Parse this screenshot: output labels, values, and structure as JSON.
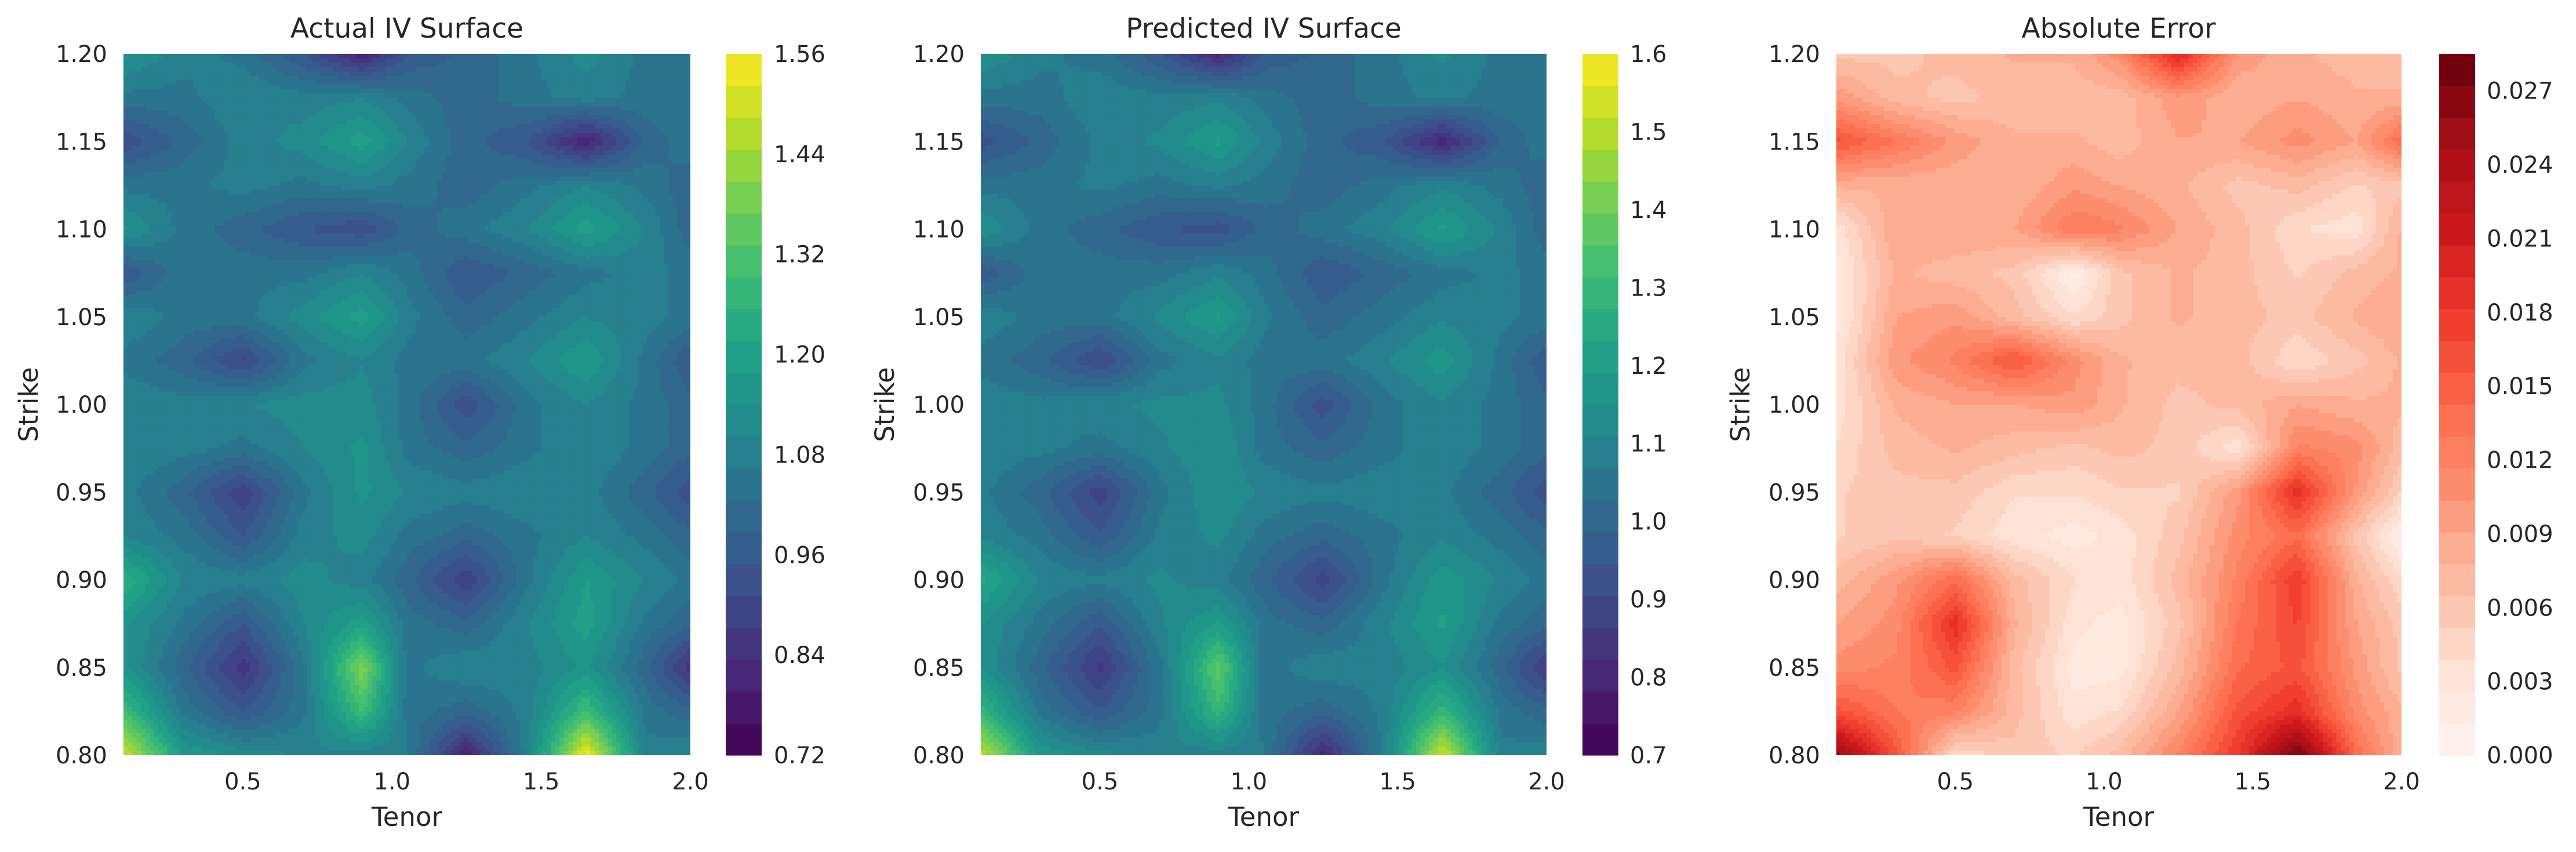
{
  "chart_data": [
    {
      "type": "heatmap",
      "title": "Actual IV Surface",
      "xlabel": "Tenor",
      "ylabel": "Strike",
      "xlim": [
        0.1,
        2.0
      ],
      "ylim": [
        0.8,
        1.2
      ],
      "xticks": [
        "0.5",
        "1.0",
        "1.5",
        "2.0"
      ],
      "yticks": [
        "0.80",
        "0.85",
        "0.90",
        "0.95",
        "1.00",
        "1.05",
        "1.10",
        "1.15",
        "1.20"
      ],
      "colormap": "viridis",
      "colorbar": {
        "min": 0.72,
        "max": 1.56,
        "ticks": [
          "0.72",
          "0.84",
          "0.96",
          "1.08",
          "1.20",
          "1.32",
          "1.44",
          "1.56"
        ]
      },
      "x": [
        0.1,
        0.3,
        0.5,
        0.7,
        0.9,
        1.05,
        1.25,
        1.45,
        1.65,
        1.85,
        2.0
      ],
      "y": [
        0.8,
        0.825,
        0.85,
        0.875,
        0.9,
        0.925,
        0.95,
        0.975,
        1.0,
        1.025,
        1.05,
        1.075,
        1.1,
        1.125,
        1.15,
        1.175,
        1.2
      ],
      "z": [
        [
          1.5,
          1.18,
          1.12,
          1.1,
          1.08,
          1.07,
          0.8,
          1.08,
          1.55,
          1.08,
          1.1
        ],
        [
          1.3,
          1.05,
          0.95,
          1.05,
          1.3,
          1.05,
          1.0,
          1.08,
          1.3,
          1.05,
          1.0
        ],
        [
          1.15,
          1.0,
          0.85,
          1.05,
          1.4,
          1.05,
          1.1,
          1.08,
          1.15,
          1.0,
          0.85
        ],
        [
          1.15,
          1.05,
          0.95,
          1.1,
          1.2,
          1.05,
          1.0,
          1.1,
          1.2,
          1.05,
          1.0
        ],
        [
          1.25,
          1.1,
          1.08,
          1.12,
          1.08,
          1.0,
          0.88,
          1.05,
          1.18,
          1.1,
          1.05
        ],
        [
          1.1,
          1.05,
          0.95,
          1.08,
          1.12,
          1.05,
          1.0,
          1.05,
          1.1,
          1.05,
          1.0
        ],
        [
          1.08,
          1.0,
          0.88,
          1.05,
          1.15,
          1.1,
          1.08,
          1.1,
          1.08,
          1.0,
          0.92
        ],
        [
          1.1,
          1.08,
          1.05,
          1.1,
          1.15,
          1.05,
          1.0,
          1.05,
          1.1,
          1.05,
          1.0
        ],
        [
          1.1,
          1.08,
          1.1,
          1.12,
          1.12,
          1.05,
          0.92,
          1.05,
          1.1,
          1.05,
          1.0
        ],
        [
          1.05,
          1.0,
          0.9,
          1.05,
          1.1,
          1.05,
          1.05,
          1.1,
          1.18,
          1.05,
          0.95
        ],
        [
          1.1,
          1.05,
          1.05,
          1.12,
          1.2,
          1.08,
          1.0,
          1.05,
          1.1,
          1.08,
          1.05
        ],
        [
          0.95,
          1.05,
          1.05,
          1.05,
          1.1,
          1.05,
          0.95,
          1.0,
          1.05,
          1.08,
          1.05
        ],
        [
          1.15,
          1.05,
          1.0,
          0.95,
          0.92,
          1.0,
          1.05,
          1.1,
          1.2,
          1.1,
          1.0
        ],
        [
          1.05,
          1.05,
          1.08,
          1.05,
          1.08,
          1.05,
          1.0,
          1.05,
          1.1,
          1.05,
          1.0
        ],
        [
          0.92,
          1.0,
          1.08,
          1.12,
          1.2,
          1.1,
          1.0,
          0.95,
          0.8,
          1.0,
          1.05
        ],
        [
          1.05,
          1.05,
          1.1,
          1.08,
          1.1,
          1.05,
          1.0,
          1.05,
          1.08,
          1.05,
          1.05
        ],
        [
          1.15,
          1.08,
          1.05,
          0.95,
          0.8,
          0.95,
          1.0,
          1.05,
          1.12,
          1.05,
          1.05
        ]
      ]
    },
    {
      "type": "heatmap",
      "title": "Predicted IV Surface",
      "xlabel": "Tenor",
      "ylabel": "Strike",
      "xlim": [
        0.1,
        2.0
      ],
      "ylim": [
        0.8,
        1.2
      ],
      "xticks": [
        "0.5",
        "1.0",
        "1.5",
        "2.0"
      ],
      "yticks": [
        "0.80",
        "0.85",
        "0.90",
        "0.95",
        "1.00",
        "1.05",
        "1.10",
        "1.15",
        "1.20"
      ],
      "colormap": "viridis",
      "colorbar": {
        "min": 0.7,
        "max": 1.6,
        "ticks": [
          "0.7",
          "0.8",
          "0.9",
          "1.0",
          "1.1",
          "1.2",
          "1.3",
          "1.4",
          "1.5",
          "1.6"
        ]
      },
      "x": [
        0.1,
        0.3,
        0.5,
        0.7,
        0.9,
        1.05,
        1.25,
        1.45,
        1.65,
        1.85,
        2.0
      ],
      "y": [
        0.8,
        0.825,
        0.85,
        0.875,
        0.9,
        0.925,
        0.95,
        0.975,
        1.0,
        1.025,
        1.05,
        1.075,
        1.1,
        1.125,
        1.15,
        1.175,
        1.2
      ],
      "z": [
        [
          1.52,
          1.18,
          1.12,
          1.1,
          1.08,
          1.07,
          0.8,
          1.08,
          1.54,
          1.08,
          1.1
        ],
        [
          1.3,
          1.05,
          0.95,
          1.05,
          1.3,
          1.05,
          1.0,
          1.08,
          1.3,
          1.05,
          1.0
        ],
        [
          1.15,
          1.0,
          0.85,
          1.05,
          1.38,
          1.05,
          1.1,
          1.08,
          1.15,
          1.0,
          0.85
        ],
        [
          1.15,
          1.05,
          0.95,
          1.1,
          1.2,
          1.05,
          1.0,
          1.1,
          1.2,
          1.05,
          1.0
        ],
        [
          1.25,
          1.1,
          1.08,
          1.12,
          1.08,
          1.0,
          0.88,
          1.05,
          1.18,
          1.1,
          1.05
        ],
        [
          1.1,
          1.05,
          0.95,
          1.08,
          1.12,
          1.05,
          1.0,
          1.05,
          1.1,
          1.05,
          1.0
        ],
        [
          1.08,
          1.0,
          0.88,
          1.05,
          1.15,
          1.1,
          1.08,
          1.1,
          1.08,
          1.0,
          0.92
        ],
        [
          1.1,
          1.08,
          1.05,
          1.1,
          1.15,
          1.05,
          1.0,
          1.05,
          1.1,
          1.05,
          1.0
        ],
        [
          1.1,
          1.08,
          1.1,
          1.12,
          1.12,
          1.05,
          0.92,
          1.05,
          1.1,
          1.05,
          1.0
        ],
        [
          1.05,
          1.0,
          0.9,
          1.05,
          1.1,
          1.05,
          1.05,
          1.1,
          1.18,
          1.05,
          0.95
        ],
        [
          1.1,
          1.05,
          1.05,
          1.12,
          1.2,
          1.08,
          1.0,
          1.05,
          1.1,
          1.08,
          1.05
        ],
        [
          0.95,
          1.05,
          1.05,
          1.05,
          1.1,
          1.05,
          0.95,
          1.0,
          1.05,
          1.08,
          1.05
        ],
        [
          1.15,
          1.05,
          1.0,
          0.95,
          0.92,
          1.0,
          1.05,
          1.1,
          1.2,
          1.1,
          1.0
        ],
        [
          1.05,
          1.05,
          1.08,
          1.05,
          1.08,
          1.05,
          1.0,
          1.05,
          1.1,
          1.05,
          1.0
        ],
        [
          0.92,
          1.0,
          1.08,
          1.12,
          1.2,
          1.1,
          1.0,
          0.95,
          0.8,
          1.0,
          1.05
        ],
        [
          1.05,
          1.05,
          1.1,
          1.08,
          1.1,
          1.05,
          1.0,
          1.05,
          1.08,
          1.05,
          1.05
        ],
        [
          1.15,
          1.08,
          1.05,
          0.95,
          0.8,
          0.95,
          1.0,
          1.05,
          1.12,
          1.05,
          1.05
        ]
      ]
    },
    {
      "type": "heatmap",
      "title": "Absolute Error",
      "xlabel": "Tenor",
      "ylabel": "Strike",
      "xlim": [
        0.1,
        2.0
      ],
      "ylim": [
        0.8,
        1.2
      ],
      "xticks": [
        "0.5",
        "1.0",
        "1.5",
        "2.0"
      ],
      "yticks": [
        "0.80",
        "0.85",
        "0.90",
        "0.95",
        "1.00",
        "1.05",
        "1.10",
        "1.15",
        "1.20"
      ],
      "colormap": "reds",
      "colorbar": {
        "min": 0.0,
        "max": 0.0285,
        "ticks": [
          "0.000",
          "0.003",
          "0.006",
          "0.009",
          "0.012",
          "0.015",
          "0.018",
          "0.021",
          "0.024",
          "0.027"
        ]
      },
      "x": [
        0.1,
        0.3,
        0.5,
        0.7,
        0.9,
        1.05,
        1.25,
        1.45,
        1.65,
        1.85,
        2.0
      ],
      "y": [
        0.8,
        0.825,
        0.85,
        0.875,
        0.9,
        0.925,
        0.95,
        0.975,
        1.0,
        1.025,
        1.05,
        1.075,
        1.1,
        1.125,
        1.15,
        1.175,
        1.2
      ],
      "z": [
        [
          0.026,
          0.016,
          0.004,
          0.006,
          0.005,
          0.007,
          0.012,
          0.018,
          0.028,
          0.014,
          0.008
        ],
        [
          0.016,
          0.013,
          0.012,
          0.007,
          0.003,
          0.004,
          0.009,
          0.016,
          0.019,
          0.011,
          0.008
        ],
        [
          0.011,
          0.012,
          0.016,
          0.007,
          0.002,
          0.002,
          0.007,
          0.014,
          0.016,
          0.01,
          0.006
        ],
        [
          0.009,
          0.011,
          0.019,
          0.008,
          0.003,
          0.002,
          0.006,
          0.013,
          0.017,
          0.009,
          0.006
        ],
        [
          0.007,
          0.01,
          0.014,
          0.007,
          0.004,
          0.003,
          0.007,
          0.012,
          0.018,
          0.008,
          0.004
        ],
        [
          0.005,
          0.006,
          0.005,
          0.003,
          0.002,
          0.003,
          0.006,
          0.011,
          0.014,
          0.006,
          0.001
        ],
        [
          0.005,
          0.006,
          0.006,
          0.004,
          0.004,
          0.005,
          0.005,
          0.01,
          0.019,
          0.01,
          0.005
        ],
        [
          0.004,
          0.007,
          0.008,
          0.007,
          0.006,
          0.007,
          0.006,
          0.003,
          0.012,
          0.011,
          0.007
        ],
        [
          0.003,
          0.008,
          0.009,
          0.009,
          0.01,
          0.008,
          0.006,
          0.007,
          0.009,
          0.008,
          0.008
        ],
        [
          0.003,
          0.01,
          0.012,
          0.016,
          0.011,
          0.008,
          0.007,
          0.007,
          0.004,
          0.006,
          0.008
        ],
        [
          0.002,
          0.009,
          0.01,
          0.007,
          0.004,
          0.006,
          0.008,
          0.007,
          0.006,
          0.008,
          0.009
        ],
        [
          0.002,
          0.008,
          0.007,
          0.006,
          0.001,
          0.006,
          0.008,
          0.007,
          0.005,
          0.007,
          0.008
        ],
        [
          0.003,
          0.009,
          0.009,
          0.009,
          0.013,
          0.012,
          0.009,
          0.007,
          0.004,
          0.003,
          0.008
        ],
        [
          0.008,
          0.008,
          0.008,
          0.008,
          0.01,
          0.009,
          0.008,
          0.006,
          0.007,
          0.005,
          0.006
        ],
        [
          0.016,
          0.013,
          0.01,
          0.008,
          0.008,
          0.007,
          0.009,
          0.009,
          0.011,
          0.009,
          0.014
        ],
        [
          0.01,
          0.007,
          0.006,
          0.007,
          0.007,
          0.007,
          0.01,
          0.008,
          0.009,
          0.008,
          0.008
        ],
        [
          0.006,
          0.006,
          0.007,
          0.008,
          0.008,
          0.011,
          0.02,
          0.01,
          0.008,
          0.007,
          0.007
        ]
      ]
    }
  ]
}
